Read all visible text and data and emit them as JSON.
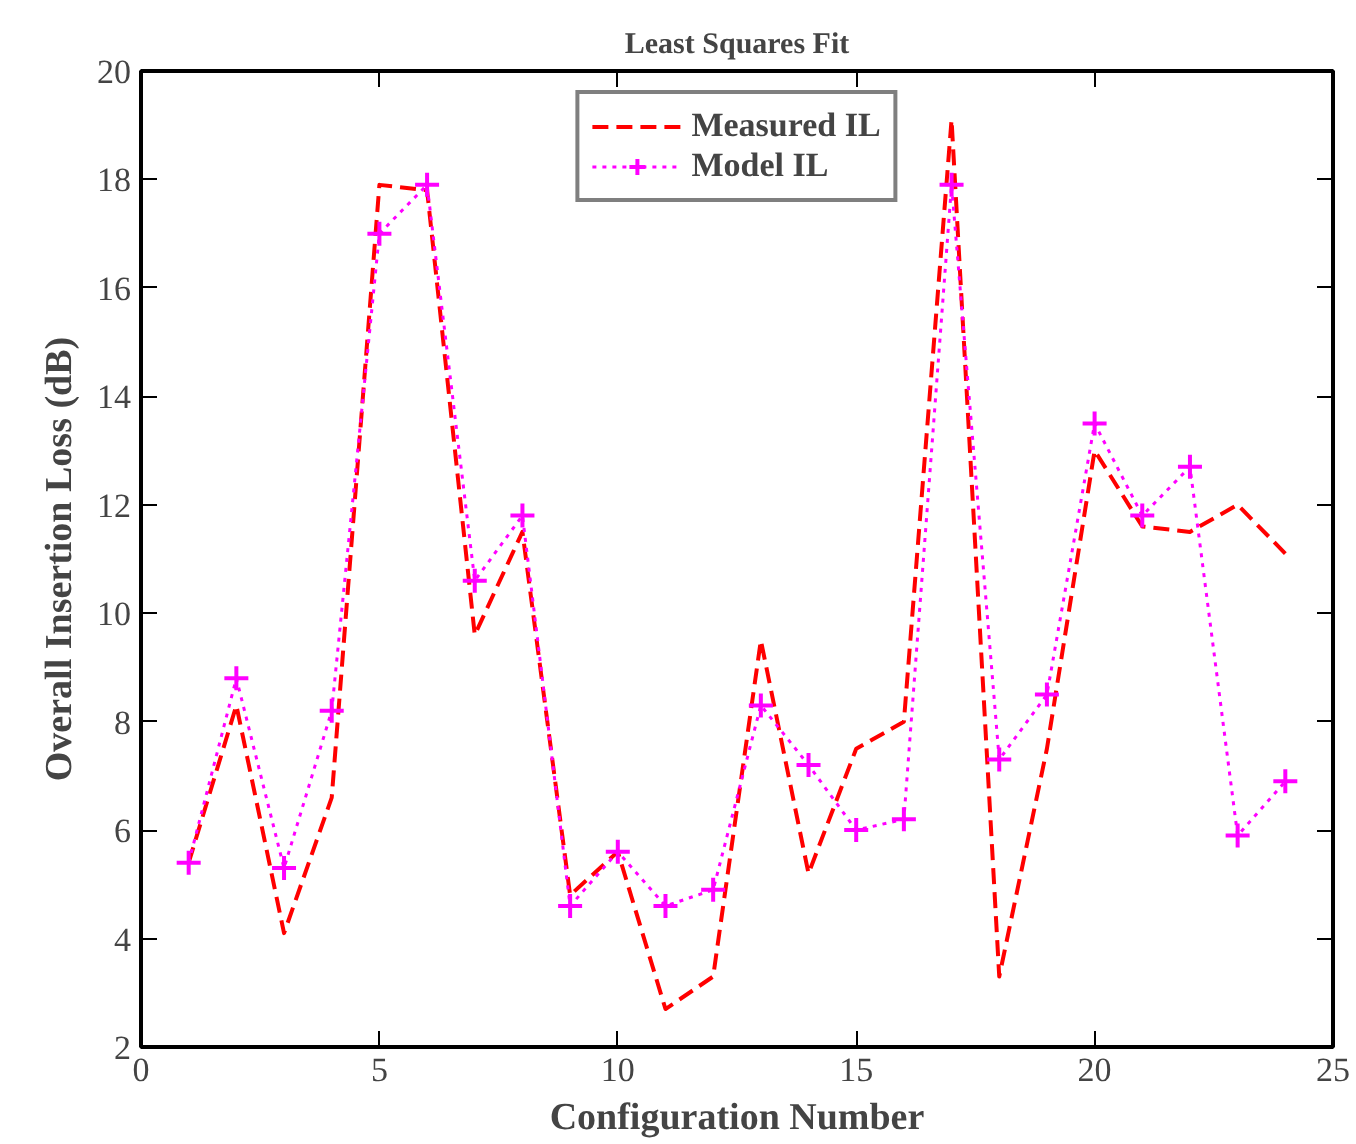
{
  "chart_data": {
    "type": "line",
    "title": "Least Squares Fit",
    "xlabel": "Configuration Number",
    "ylabel": "Overall Insertion Loss (dB)",
    "x": [
      1,
      2,
      3,
      4,
      5,
      6,
      7,
      8,
      9,
      10,
      11,
      12,
      13,
      14,
      15,
      16,
      17,
      18,
      19,
      20,
      21,
      22,
      23,
      24
    ],
    "series": [
      {
        "name": "Measured IL",
        "color": "#ff0000",
        "line_style": "dashed",
        "marker": "none",
        "values": [
          5.4,
          8.3,
          4.1,
          6.6,
          17.9,
          17.8,
          9.6,
          11.5,
          4.8,
          5.6,
          2.7,
          3.3,
          9.5,
          5.2,
          7.5,
          8.0,
          19.1,
          3.3,
          7.5,
          13.0,
          11.6,
          11.5,
          12.0,
          11.1
        ]
      },
      {
        "name": "Model IL",
        "color": "#ff00ff",
        "line_style": "dotted",
        "marker": "cross",
        "values": [
          5.4,
          8.8,
          5.3,
          8.2,
          17.0,
          17.9,
          10.6,
          11.8,
          4.6,
          5.6,
          4.6,
          4.9,
          8.3,
          7.2,
          6.0,
          6.2,
          17.9,
          7.3,
          8.5,
          13.5,
          11.8,
          12.7,
          5.9,
          6.9
        ]
      }
    ],
    "xlim": [
      0,
      25
    ],
    "xticks": [
      0,
      5,
      10,
      15,
      20,
      25
    ],
    "ylim": [
      2,
      20
    ],
    "yticks": [
      2,
      4,
      6,
      8,
      10,
      12,
      14,
      16,
      18,
      20
    ],
    "grid": false,
    "legend": "top"
  }
}
